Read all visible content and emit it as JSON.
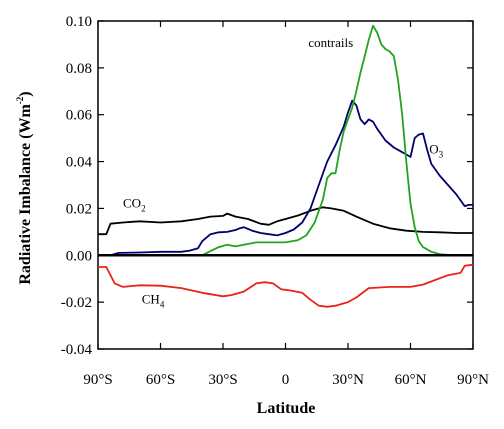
{
  "chart_data": {
    "type": "line",
    "ylabel": "Radiative Imbalance (Wm-2)",
    "ylabel_main": "Radiative Imbalance (Wm",
    "ylabel_sup": "-2",
    "ylabel_close": ")",
    "xlabel": "Latitude",
    "xlim": [
      -90,
      90
    ],
    "ylim": [
      -0.04,
      0.1
    ],
    "x_ticks": [
      -90,
      -60,
      -30,
      0,
      30,
      60,
      90
    ],
    "x_tick_labels": [
      "90°S",
      "60°S",
      "30°S",
      "0",
      "30°N",
      "60°N",
      "90°N"
    ],
    "y_ticks": [
      -0.04,
      -0.02,
      0.0,
      0.02,
      0.04,
      0.06,
      0.08,
      0.1
    ],
    "y_tick_labels": [
      "-0.04",
      "-0.02",
      "0.00",
      "0.02",
      "0.04",
      "0.06",
      "0.08",
      "0.10"
    ],
    "grid": false,
    "legend": "none",
    "zero_line": true,
    "series": [
      {
        "name": "CO2",
        "label_main": "CO",
        "label_sub": "2",
        "color": "#000000",
        "x": [
          -90,
          -86,
          -84,
          -78,
          -70,
          -60,
          -50,
          -42,
          -36,
          -30,
          -28,
          -24,
          -18,
          -12,
          -8,
          -4,
          0,
          6,
          12,
          18,
          22,
          28,
          34,
          42,
          50,
          58,
          66,
          74,
          82,
          90
        ],
        "y": [
          0.009,
          0.009,
          0.0135,
          0.014,
          0.0145,
          0.014,
          0.0145,
          0.0155,
          0.0165,
          0.0168,
          0.0178,
          0.0165,
          0.0155,
          0.0135,
          0.013,
          0.0145,
          0.0155,
          0.017,
          0.019,
          0.0205,
          0.02,
          0.019,
          0.0165,
          0.0135,
          0.0115,
          0.0105,
          0.01,
          0.0098,
          0.0095,
          0.0095
        ]
      },
      {
        "name": "O3",
        "label_main": "O",
        "label_sub": "3",
        "color": "#00006e",
        "x": [
          -90,
          -84,
          -80,
          -70,
          -60,
          -50,
          -46,
          -42,
          -40,
          -36,
          -32,
          -28,
          -24,
          -22,
          -20,
          -16,
          -12,
          -8,
          -4,
          0,
          4,
          8,
          12,
          16,
          20,
          24,
          28,
          30,
          32,
          34,
          36,
          38,
          40,
          42,
          44,
          48,
          52,
          56,
          58,
          60,
          62,
          64,
          66,
          68,
          70,
          74,
          78,
          82,
          86,
          88,
          90
        ],
        "y": [
          0.0,
          0.0,
          0.001,
          0.0012,
          0.0015,
          0.0015,
          0.002,
          0.003,
          0.006,
          0.009,
          0.0098,
          0.01,
          0.0108,
          0.0115,
          0.012,
          0.0105,
          0.0095,
          0.009,
          0.0085,
          0.0095,
          0.011,
          0.014,
          0.02,
          0.03,
          0.04,
          0.047,
          0.055,
          0.061,
          0.066,
          0.064,
          0.058,
          0.056,
          0.058,
          0.057,
          0.054,
          0.049,
          0.046,
          0.044,
          0.043,
          0.042,
          0.05,
          0.0515,
          0.052,
          0.045,
          0.039,
          0.034,
          0.03,
          0.026,
          0.021,
          0.0215,
          0.0215
        ]
      },
      {
        "name": "contrails",
        "label_main": "contrails",
        "label_sub": "",
        "color": "#22a31f",
        "x": [
          -90,
          -40,
          -36,
          -32,
          -28,
          -24,
          -20,
          -14,
          -8,
          -4,
          0,
          6,
          10,
          14,
          18,
          20,
          22,
          24,
          26,
          28,
          30,
          32,
          34,
          36,
          38,
          40,
          42,
          44,
          46,
          48,
          50,
          52,
          54,
          56,
          58,
          60,
          62,
          64,
          66,
          68,
          70,
          74,
          80,
          90
        ],
        "y": [
          0.0,
          0.0,
          0.0018,
          0.0035,
          0.0045,
          0.0038,
          0.0045,
          0.0055,
          0.0055,
          0.0055,
          0.0055,
          0.0065,
          0.0085,
          0.014,
          0.024,
          0.033,
          0.035,
          0.035,
          0.045,
          0.053,
          0.058,
          0.063,
          0.07,
          0.078,
          0.085,
          0.092,
          0.098,
          0.095,
          0.09,
          0.088,
          0.087,
          0.085,
          0.075,
          0.06,
          0.04,
          0.022,
          0.012,
          0.006,
          0.0035,
          0.0025,
          0.0015,
          0.0005,
          0.0,
          0.0
        ]
      },
      {
        "name": "CH4",
        "label_main": "CH",
        "label_sub": "4",
        "color": "#e8231a",
        "x": [
          -90,
          -86,
          -82,
          -78,
          -70,
          -60,
          -50,
          -40,
          -30,
          -26,
          -20,
          -14,
          -10,
          -6,
          -2,
          2,
          8,
          12,
          16,
          20,
          24,
          30,
          34,
          40,
          50,
          60,
          66,
          72,
          78,
          84,
          86,
          90
        ],
        "y": [
          -0.005,
          -0.005,
          -0.012,
          -0.0135,
          -0.0128,
          -0.013,
          -0.014,
          -0.016,
          -0.0175,
          -0.017,
          -0.0155,
          -0.012,
          -0.0115,
          -0.012,
          -0.0145,
          -0.015,
          -0.016,
          -0.019,
          -0.0215,
          -0.022,
          -0.0215,
          -0.02,
          -0.018,
          -0.014,
          -0.0135,
          -0.0135,
          -0.0125,
          -0.0105,
          -0.0085,
          -0.0075,
          -0.0045,
          -0.004
        ]
      }
    ],
    "annotations": [
      {
        "series": "contrails",
        "anchor_x": 11,
        "anchor_y": 0.089,
        "align": "start"
      },
      {
        "series": "O3",
        "anchor_x": 69,
        "anchor_y": 0.0435,
        "align": "start"
      },
      {
        "series": "CO2",
        "anchor_x": -78,
        "anchor_y": 0.0205,
        "align": "start"
      },
      {
        "series": "CH4",
        "anchor_x": -69,
        "anchor_y": -0.0205,
        "align": "start"
      }
    ]
  }
}
